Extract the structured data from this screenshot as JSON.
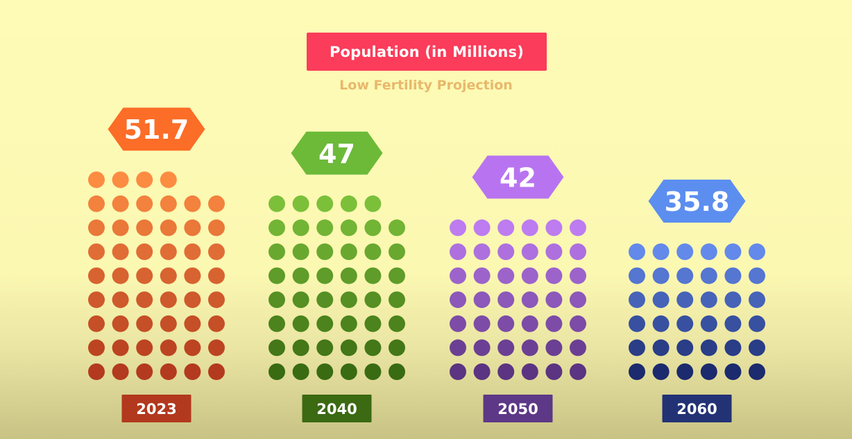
{
  "title": "Population (in Millions)",
  "subtitle": "Low Fertility Projection",
  "chart_data": {
    "type": "bar",
    "title": "Population (in Millions)",
    "subtitle": "Low Fertility Projection",
    "categories": [
      "2023",
      "2040",
      "2050",
      "2060"
    ],
    "values": [
      51.7,
      47,
      42,
      35.8
    ],
    "value_labels": [
      "51.7",
      "47",
      "42",
      "35.8"
    ],
    "dot_counts": [
      52,
      47,
      42,
      36
    ],
    "colors": [
      {
        "top": "#fb8c42",
        "bottom": "#b33a1e",
        "hex": "#fc6d27",
        "year_box": "#b2391d"
      },
      {
        "top": "#7cc03a",
        "bottom": "#396b12",
        "hex": "#6cba38",
        "year_box": "#3b6a12"
      },
      {
        "top": "#bd7cf0",
        "bottom": "#5b3482",
        "hex": "#b874f0",
        "year_box": "#5d3886"
      },
      {
        "top": "#6389ea",
        "bottom": "#1c2a6e",
        "hex": "#5c8ef0",
        "year_box": "#223275"
      }
    ]
  }
}
